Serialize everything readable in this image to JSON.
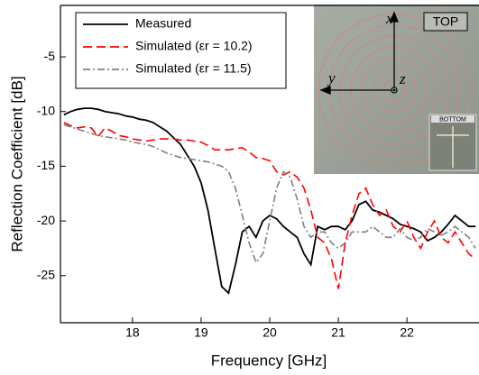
{
  "chart_data": {
    "type": "line",
    "x_label": "Frequency [GHz]",
    "y_label": "Reflection Coefficient [dB]",
    "xlim": [
      16.95,
      23.05
    ],
    "ylim": [
      -29.3,
      -0.3
    ],
    "xticks": [
      18,
      19,
      20,
      21,
      22
    ],
    "yticks": [
      -5,
      -10,
      -15,
      -20,
      -25
    ],
    "legend": "upper left",
    "x": [
      17.0,
      17.1,
      17.2,
      17.3,
      17.4,
      17.5,
      17.6,
      17.7,
      17.8,
      17.9,
      18.0,
      18.1,
      18.2,
      18.3,
      18.4,
      18.5,
      18.6,
      18.7,
      18.8,
      18.9,
      19.0,
      19.1,
      19.2,
      19.3,
      19.4,
      19.5,
      19.6,
      19.7,
      19.8,
      19.9,
      20.0,
      20.1,
      20.2,
      20.3,
      20.4,
      20.5,
      20.6,
      20.7,
      20.8,
      20.9,
      21.0,
      21.1,
      21.2,
      21.3,
      21.4,
      21.5,
      21.6,
      21.7,
      21.8,
      21.9,
      22.0,
      22.1,
      22.2,
      22.3,
      22.4,
      22.5,
      22.6,
      22.7,
      22.8,
      22.9,
      23.0
    ],
    "series": [
      {
        "name": "Measured",
        "color": "#000000",
        "dash": "solid",
        "values": [
          -10.3,
          -10.0,
          -9.8,
          -9.7,
          -9.7,
          -9.8,
          -10.0,
          -10.1,
          -10.2,
          -10.4,
          -10.5,
          -10.7,
          -10.8,
          -11.0,
          -11.4,
          -11.8,
          -12.4,
          -13.0,
          -14.0,
          -15.0,
          -16.5,
          -19.0,
          -22.5,
          -26.0,
          -26.6,
          -24.0,
          -21.0,
          -20.5,
          -21.5,
          -20.0,
          -19.5,
          -19.8,
          -20.5,
          -21.0,
          -21.5,
          -23.0,
          -24.0,
          -20.5,
          -20.8,
          -20.5,
          -20.5,
          -20.8,
          -20.0,
          -18.5,
          -18.2,
          -19.0,
          -19.2,
          -19.5,
          -19.8,
          -20.3,
          -20.5,
          -20.7,
          -21.0,
          -21.8,
          -21.5,
          -21.0,
          -20.3,
          -19.5,
          -20.0,
          -20.5,
          -20.5
        ]
      },
      {
        "name": "Simulated (εr = 10.2)",
        "color": "#ff0000",
        "dash": "dashed",
        "values": [
          -11.0,
          -11.3,
          -11.5,
          -11.4,
          -11.5,
          -12.3,
          -11.5,
          -11.8,
          -12.2,
          -12.3,
          -12.5,
          -12.6,
          -12.7,
          -12.6,
          -12.5,
          -12.5,
          -12.5,
          -12.6,
          -12.6,
          -12.7,
          -12.8,
          -13.1,
          -13.5,
          -13.5,
          -13.5,
          -13.4,
          -13.3,
          -13.7,
          -14.2,
          -14.3,
          -14.5,
          -15.5,
          -15.8,
          -15.5,
          -16.0,
          -17.0,
          -19.0,
          -21.5,
          -22.0,
          -23.5,
          -26.2,
          -22.0,
          -19.5,
          -17.5,
          -17.0,
          -18.5,
          -19.5,
          -19.0,
          -20.5,
          -21.0,
          -20.0,
          -21.5,
          -22.5,
          -21.0,
          -20.0,
          -21.5,
          -22.0,
          -21.0,
          -22.0,
          -23.0,
          -23.5
        ]
      },
      {
        "name": "Simulated (εr = 11.5)",
        "color": "#808080",
        "dash": "dashdot",
        "values": [
          -11.2,
          -11.4,
          -11.6,
          -11.8,
          -12.0,
          -12.2,
          -12.3,
          -12.4,
          -12.5,
          -12.6,
          -12.8,
          -12.9,
          -13.0,
          -13.2,
          -13.5,
          -13.8,
          -14.0,
          -14.2,
          -14.3,
          -14.4,
          -14.5,
          -14.6,
          -14.8,
          -15.0,
          -15.5,
          -17.0,
          -19.5,
          -22.0,
          -23.8,
          -23.0,
          -20.0,
          -17.0,
          -15.5,
          -16.0,
          -18.0,
          -20.5,
          -21.5,
          -21.0,
          -21.0,
          -22.0,
          -22.5,
          -22.0,
          -21.0,
          -21.0,
          -21.0,
          -20.5,
          -21.0,
          -21.5,
          -21.5,
          -20.7,
          -21.5,
          -21.8,
          -21.5,
          -20.7,
          -21.0,
          -21.3,
          -21.0,
          -20.5,
          -21.0,
          -21.5,
          -22.5
        ]
      }
    ],
    "inset_labels": {
      "top": "TOP",
      "bottom": "BOTTOM",
      "x": "x",
      "y": "y",
      "z": "z"
    }
  }
}
